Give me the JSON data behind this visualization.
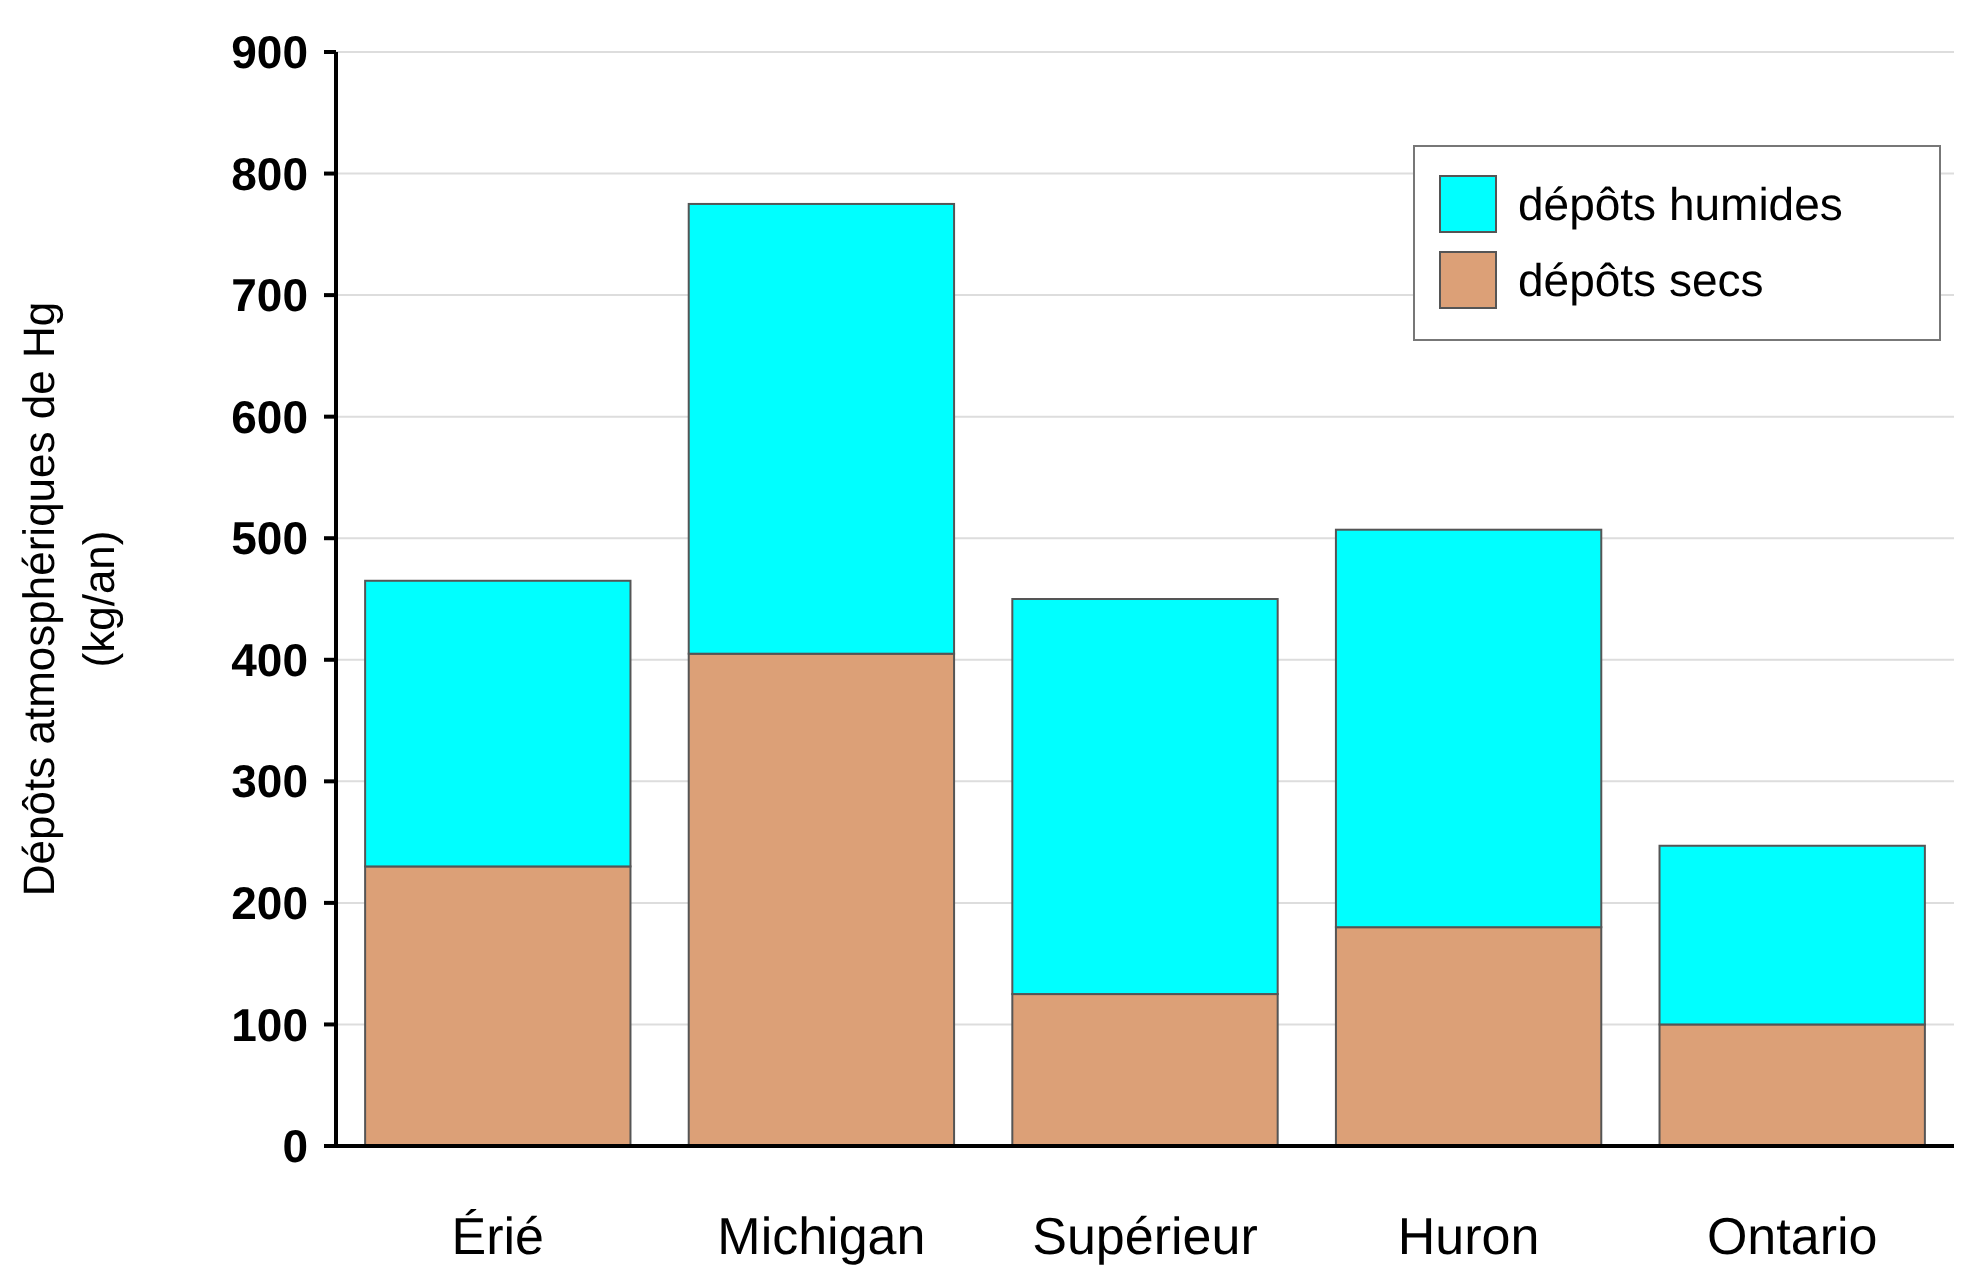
{
  "chart_data": {
    "type": "bar",
    "stacked": true,
    "ylabel": "Dépôts atmosphériques de Hg\n(kg/an)",
    "categories": [
      "Érié",
      "Michigan",
      "Supérieur",
      "Huron",
      "Ontario"
    ],
    "series": [
      {
        "name": "dépôts secs",
        "color": "#dca077",
        "values": [
          230,
          405,
          125,
          180,
          100
        ]
      },
      {
        "name": "dépôts humides",
        "color": "#00ffff",
        "values": [
          235,
          370,
          325,
          327,
          147
        ]
      }
    ],
    "ylim": [
      0,
      900
    ],
    "yticks": [
      0,
      100,
      200,
      300,
      400,
      500,
      600,
      700,
      800,
      900
    ],
    "grid": "y",
    "legend": "top right"
  }
}
